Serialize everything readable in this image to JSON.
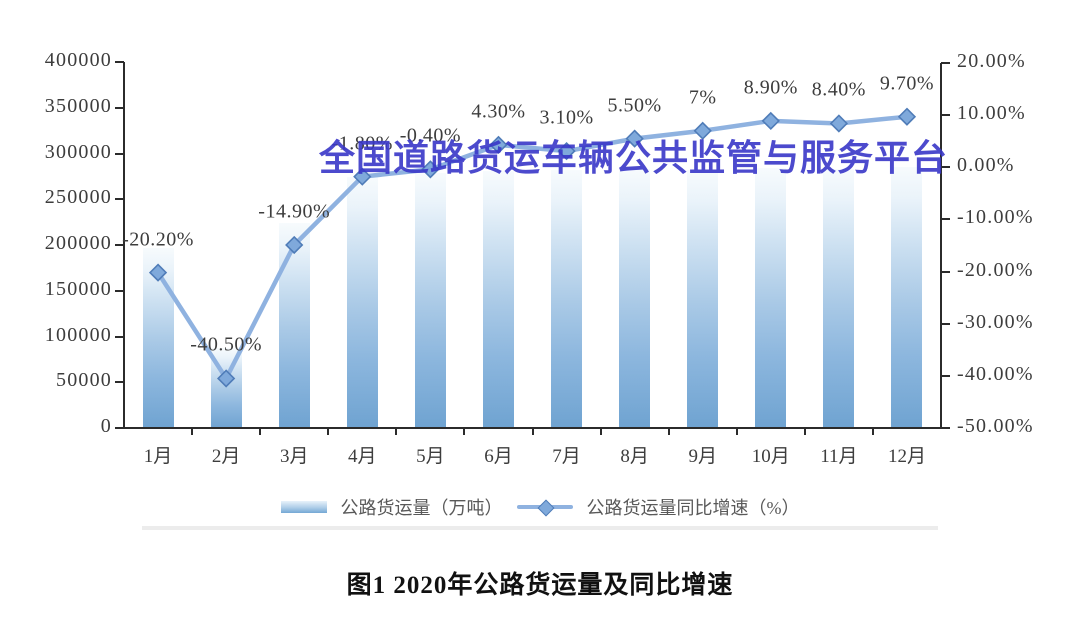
{
  "figure": {
    "watermark": "全国道路货运车辆公共监管与服务平台",
    "notes": "Static chart image. April growth label and May label minus sign are obscured by the watermark; bar tops for May–Dec are partially hidden behind the watermark band. Bar heights estimated from pixels."
  },
  "chart_data": {
    "type": "combo (bar + line, dual axis)",
    "title": "图1 2020年公路货运量及同比增速",
    "categories": [
      "1月",
      "2月",
      "3月",
      "4月",
      "5月",
      "6月",
      "7月",
      "8月",
      "9月",
      "10月",
      "11月",
      "12月"
    ],
    "series": [
      {
        "name": "公路货运量（万吨）",
        "type": "bar",
        "axis": "left",
        "values": [
          197000,
          87000,
          224000,
          274000,
          279000,
          281000,
          282000,
          283000,
          282000,
          284000,
          283000,
          285000
        ]
      },
      {
        "name": "公路货运量同比增速（%）",
        "type": "line",
        "axis": "right",
        "values": [
          -20.2,
          -40.5,
          -14.9,
          -1.8,
          -0.4,
          4.3,
          3.1,
          5.5,
          7,
          8.9,
          8.4,
          9.7
        ],
        "labels": [
          "-20.20%",
          "-40.50%",
          "-14.90%",
          "-1.80%",
          "-0.40%",
          "4.30%",
          "3.10%",
          "5.50%",
          "7%",
          "8.90%",
          "8.40%",
          "9.70%"
        ]
      }
    ],
    "left_axis": {
      "min": 0,
      "max": 400000,
      "step": 50000,
      "ticks": [
        {
          "label": "400000",
          "value": 400000
        },
        {
          "label": "350000",
          "value": 350000
        },
        {
          "label": "300000",
          "value": 300000
        },
        {
          "label": "250000",
          "value": 250000
        },
        {
          "label": "200000",
          "value": 200000
        },
        {
          "label": "150000",
          "value": 150000
        },
        {
          "label": "100000",
          "value": 100000
        },
        {
          "label": "50000",
          "value": 50000
        },
        {
          "label": "0",
          "value": 0
        }
      ]
    },
    "right_axis": {
      "min": -50,
      "max": 20,
      "step": 10,
      "ticks": [
        {
          "label": "20.00%",
          "value": 20
        },
        {
          "label": "10.00%",
          "value": 10
        },
        {
          "label": "0.00%",
          "value": 0
        },
        {
          "label": "-10.00%",
          "value": -10
        },
        {
          "label": "-20.00%",
          "value": -20
        },
        {
          "label": "-30.00%",
          "value": -30
        },
        {
          "label": "-40.00%",
          "value": -40
        },
        {
          "label": "-50.00%",
          "value": -50
        }
      ]
    },
    "grid": "off",
    "legend_position": "bottom-center"
  },
  "colors": {
    "bar_bottom": "#6fa3d1",
    "bar_top": "#f7fbfd",
    "line": "#8fb2e0",
    "marker_fill": "#7fa9db",
    "marker_stroke": "#4f7cb8",
    "watermark_blue": "#3937c8",
    "axis": "#2b2b2b",
    "text_gray": "#3d3d3d",
    "legend_text": "#595959"
  }
}
